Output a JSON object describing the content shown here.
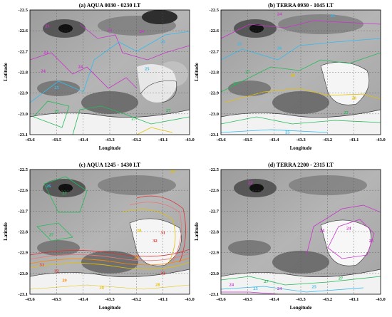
{
  "figure": {
    "panels": [
      {
        "id": "a",
        "title": "(a) AQUA 0030 - 0230 LT",
        "xlabel": "Longitude",
        "ylabel": "Latitude",
        "x_ticks": [
          "-43.6",
          "-43.5",
          "-43.4",
          "-43.3",
          "-43.2",
          "-43.1",
          "-43.0"
        ],
        "y_ticks": [
          "-22.5",
          "-22.6",
          "-22.7",
          "-22.8",
          "-22.9",
          "-23.0",
          "-23.1"
        ],
        "contour_labels": [
          {
            "text": "23",
            "color": "#cc33cc",
            "lon": -43.535,
            "lat": -22.584
          },
          {
            "text": "24",
            "color": "#cc33cc",
            "lon": -43.3,
            "lat": -22.605
          },
          {
            "text": "24",
            "color": "#cc33cc",
            "lon": -43.18,
            "lat": -22.61
          },
          {
            "text": "25",
            "color": "#33bbee",
            "lon": -43.1,
            "lat": -22.66
          },
          {
            "text": "23",
            "color": "#cc33cc",
            "lon": -43.54,
            "lat": -22.71
          },
          {
            "text": "24",
            "color": "#cc33cc",
            "lon": -43.41,
            "lat": -22.78
          },
          {
            "text": "24",
            "color": "#cc33cc",
            "lon": -43.55,
            "lat": -22.8
          },
          {
            "text": "25",
            "color": "#33bbee",
            "lon": -43.5,
            "lat": -22.88
          },
          {
            "text": "25",
            "color": "#33bbee",
            "lon": -43.16,
            "lat": -22.79
          },
          {
            "text": "27",
            "color": "#22bb55",
            "lon": -43.5,
            "lat": -22.995
          },
          {
            "text": "27",
            "color": "#22bb55",
            "lon": -43.21,
            "lat": -23.03
          },
          {
            "text": "27",
            "color": "#22bb55",
            "lon": -43.08,
            "lat": -22.99
          }
        ]
      },
      {
        "id": "b",
        "title": "(b) TERRA 0930 - 1045 LT",
        "xlabel": "Longitude",
        "ylabel": "Latitude",
        "x_ticks": [
          "-43.6",
          "-43.5",
          "-43.4",
          "-43.3",
          "-43.2",
          "-43.1",
          "-43.0"
        ],
        "y_ticks": [
          "-22.5",
          "-22.6",
          "-22.7",
          "-22.8",
          "-22.9",
          "-23.0",
          "-23.1"
        ],
        "contour_labels": [
          {
            "text": "24",
            "color": "#cc33cc",
            "lon": -43.38,
            "lat": -22.525
          },
          {
            "text": "25",
            "color": "#33bbee",
            "lon": -43.18,
            "lat": -22.535
          },
          {
            "text": "25",
            "color": "#33bbee",
            "lon": -43.53,
            "lat": -22.67
          },
          {
            "text": "26",
            "color": "#33bbee",
            "lon": -43.38,
            "lat": -22.69
          },
          {
            "text": "27",
            "color": "#22bb55",
            "lon": -43.5,
            "lat": -22.805
          },
          {
            "text": "27",
            "color": "#22bb55",
            "lon": -43.545,
            "lat": -22.86
          },
          {
            "text": "28",
            "color": "#e5c000",
            "lon": -43.33,
            "lat": -22.82
          },
          {
            "text": "28",
            "color": "#e5c000",
            "lon": -43.1,
            "lat": -22.93
          },
          {
            "text": "25",
            "color": "#33bbee",
            "lon": -43.35,
            "lat": -23.095
          },
          {
            "text": "27",
            "color": "#22bb55",
            "lon": -43.13,
            "lat": -23.0
          }
        ]
      },
      {
        "id": "c",
        "title": "(c) AQUA 1245 - 1430 LT",
        "xlabel": "Longitude",
        "ylabel": "Latitude",
        "x_ticks": [
          "-43.6",
          "-43.5",
          "-43.4",
          "-43.3",
          "-43.2",
          "-43.1",
          "-43.0"
        ],
        "y_ticks": [
          "-22.5",
          "-22.6",
          "-22.7",
          "-22.8",
          "-22.9",
          "-23.0",
          "-23.1"
        ],
        "contour_labels": [
          {
            "text": "28",
            "color": "#e5c000",
            "lon": -43.065,
            "lat": -22.515
          },
          {
            "text": "26",
            "color": "#33bbee",
            "lon": -43.53,
            "lat": -22.585
          },
          {
            "text": "27",
            "color": "#22bb55",
            "lon": -43.47,
            "lat": -22.62
          },
          {
            "text": "27",
            "color": "#22bb55",
            "lon": -43.52,
            "lat": -22.82
          },
          {
            "text": "28",
            "color": "#e5c000",
            "lon": -43.19,
            "lat": -22.8
          },
          {
            "text": "31",
            "color": "#dd3333",
            "lon": -43.1,
            "lat": -22.81
          },
          {
            "text": "32",
            "color": "#dd3333",
            "lon": -43.13,
            "lat": -22.85
          },
          {
            "text": "29",
            "color": "#ff8800",
            "lon": -43.2,
            "lat": -22.93
          },
          {
            "text": "31",
            "color": "#dd3333",
            "lon": -43.555,
            "lat": -22.965
          },
          {
            "text": "32",
            "color": "#dd3333",
            "lon": -43.5,
            "lat": -22.995
          },
          {
            "text": "32",
            "color": "#dd3333",
            "lon": -43.1,
            "lat": -23.005
          },
          {
            "text": "29",
            "color": "#ff8800",
            "lon": -43.47,
            "lat": -23.04
          },
          {
            "text": "28",
            "color": "#e5c000",
            "lon": -43.33,
            "lat": -23.075
          },
          {
            "text": "28",
            "color": "#e5c000",
            "lon": -43.12,
            "lat": -23.06
          }
        ]
      },
      {
        "id": "d",
        "title": "(d) TERRA 2200 - 2315 LT",
        "xlabel": "Longitude",
        "ylabel": "Latitude",
        "x_ticks": [
          "-43.6",
          "-43.5",
          "-43.4",
          "-43.3",
          "-43.2",
          "-43.1",
          "-43.0"
        ],
        "y_ticks": [
          "-22.5",
          "-22.6",
          "-22.7",
          "-22.8",
          "-22.9",
          "-23.0",
          "-23.1"
        ],
        "contour_labels": [
          {
            "text": "22",
            "color": "#cc33cc",
            "lon": -43.49,
            "lat": -22.57
          },
          {
            "text": "24",
            "color": "#cc33cc",
            "lon": -43.22,
            "lat": -22.8
          },
          {
            "text": "24",
            "color": "#cc33cc",
            "lon": -43.12,
            "lat": -22.79
          },
          {
            "text": "23",
            "color": "#cc33cc",
            "lon": -43.035,
            "lat": -22.85
          },
          {
            "text": "24",
            "color": "#cc33cc",
            "lon": -43.56,
            "lat": -23.06
          },
          {
            "text": "24",
            "color": "#cc33cc",
            "lon": -43.38,
            "lat": -23.08
          },
          {
            "text": "25",
            "color": "#33bbee",
            "lon": -43.47,
            "lat": -23.08
          },
          {
            "text": "27",
            "color": "#22bb55",
            "lon": -43.43,
            "lat": -23.045
          },
          {
            "text": "25",
            "color": "#33bbee",
            "lon": -43.25,
            "lat": -23.07
          },
          {
            "text": "27",
            "color": "#22bb55",
            "lon": -43.15,
            "lat": -23.03
          }
        ]
      }
    ]
  }
}
